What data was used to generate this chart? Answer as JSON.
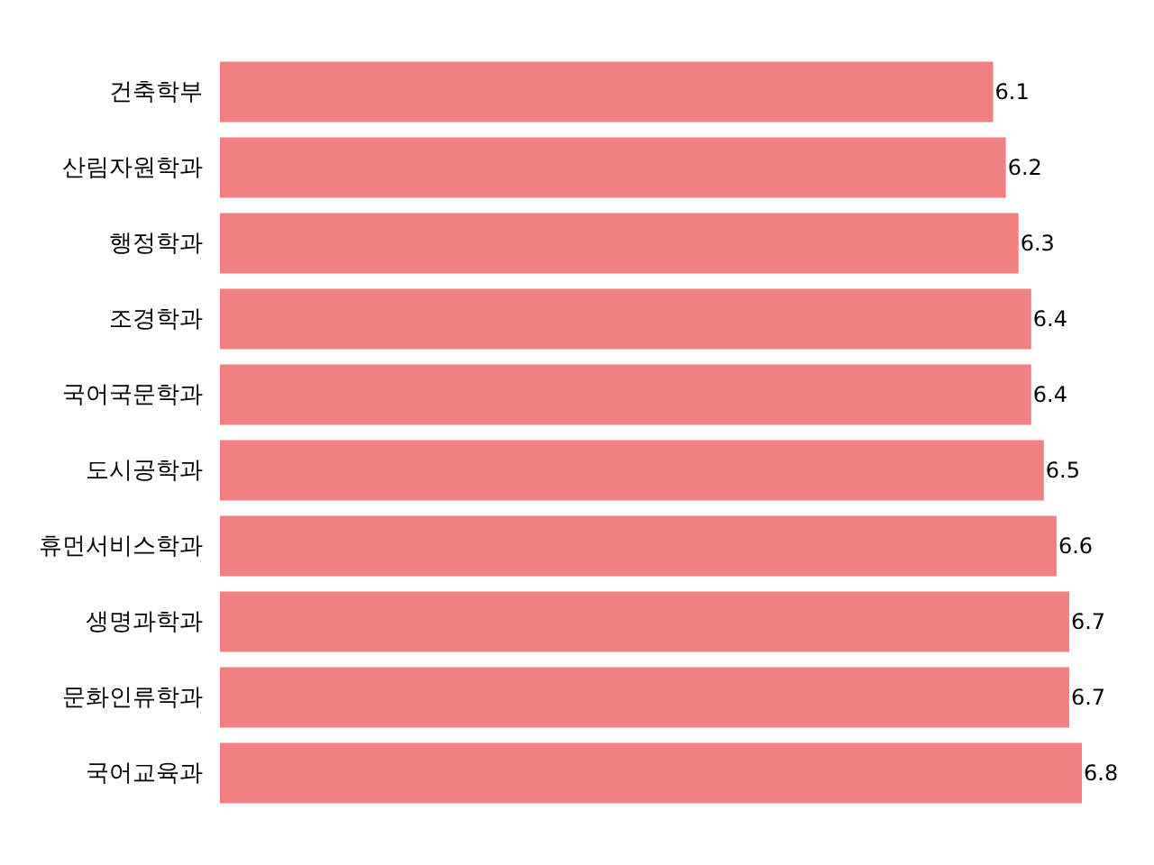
{
  "chart_data": {
    "type": "bar",
    "orientation": "horizontal",
    "categories": [
      "건축학부",
      "산림자원학과",
      "행정학과",
      "조경학과",
      "국어국문학과",
      "도시공학과",
      "휴먼서비스학과",
      "생명과학과",
      "문화인류학과",
      "국어교육과"
    ],
    "values": [
      6.1,
      6.2,
      6.3,
      6.4,
      6.4,
      6.5,
      6.6,
      6.7,
      6.7,
      6.8
    ],
    "color": "#f08080",
    "data_labels": true,
    "tick_labels": "y"
  }
}
